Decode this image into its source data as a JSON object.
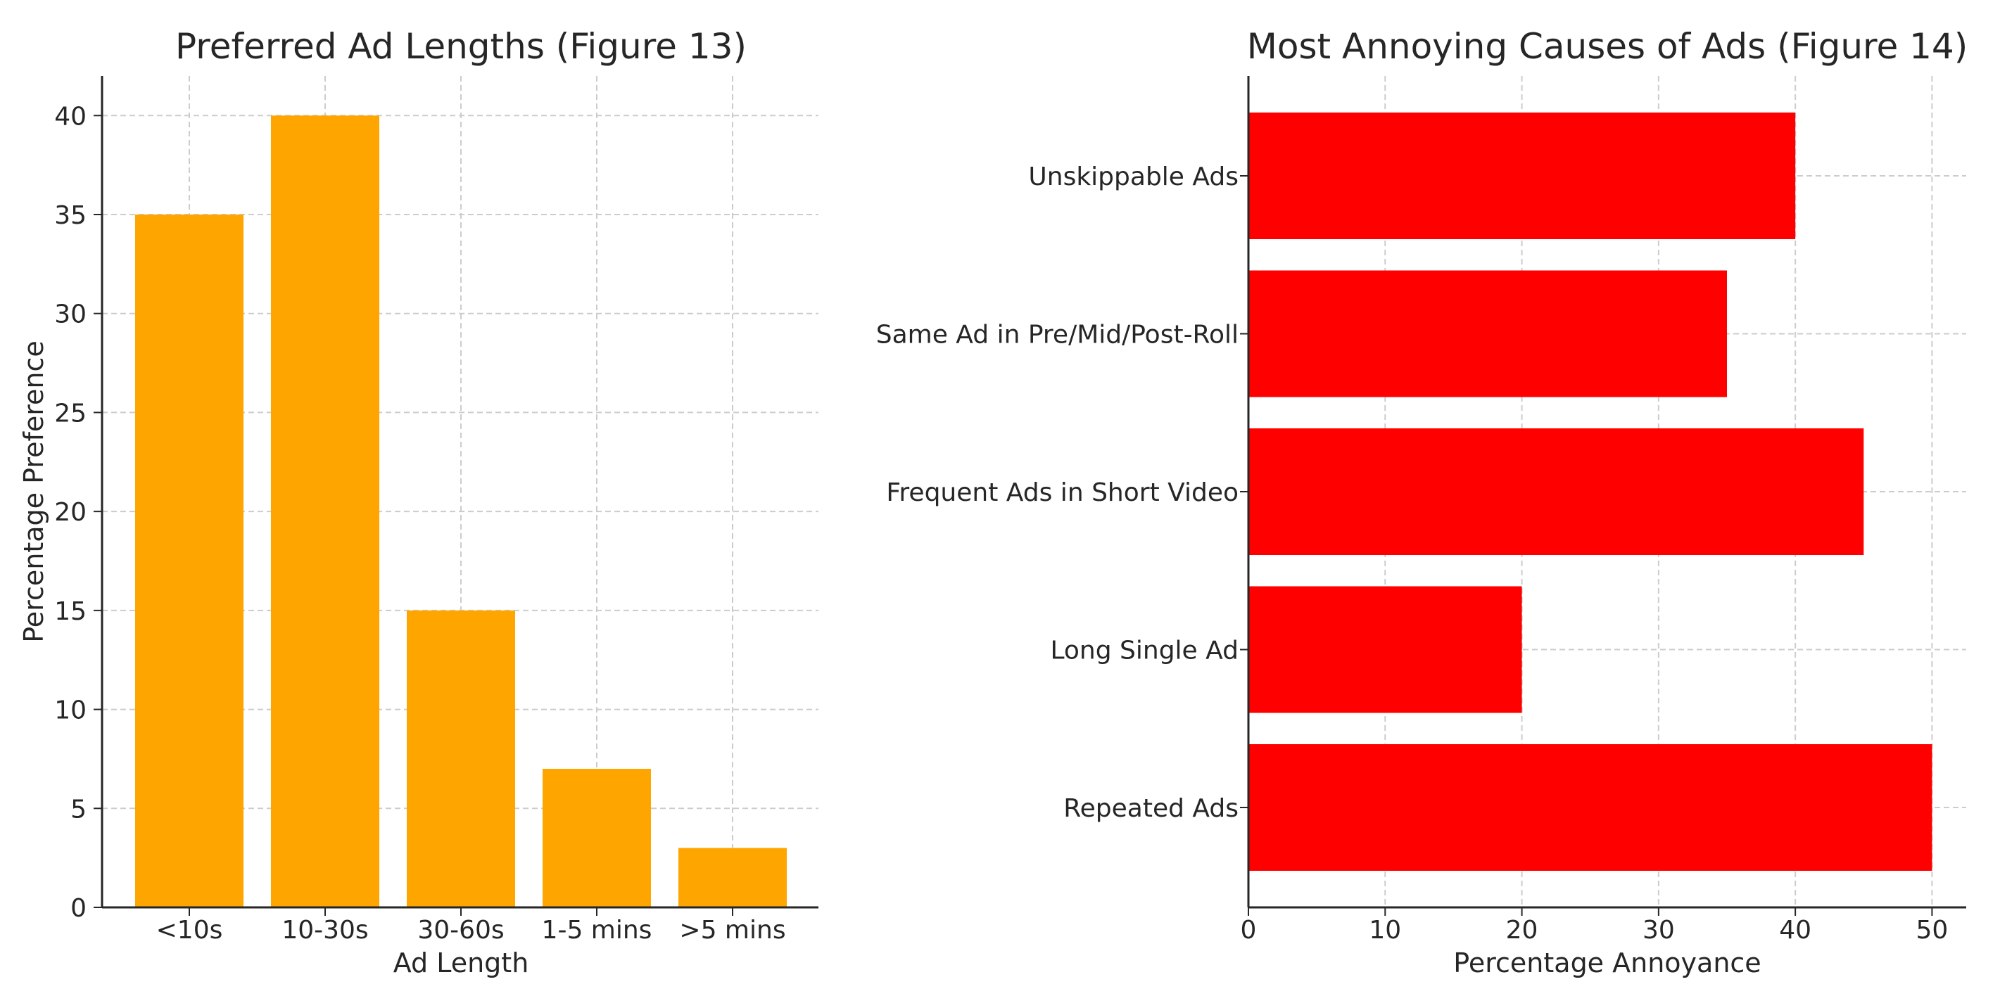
{
  "chart_data": [
    {
      "type": "bar",
      "title": "Preferred Ad Lengths (Figure 13)",
      "xlabel": "Ad Length",
      "ylabel": "Percentage Preference",
      "categories": [
        "<10s",
        "10-30s",
        "30-60s",
        "1-5 mins",
        ">5 mins"
      ],
      "values": [
        35,
        40,
        15,
        7,
        3
      ],
      "ylim": [
        0,
        42
      ],
      "yticks": [
        0,
        5,
        10,
        15,
        20,
        25,
        30,
        35,
        40
      ],
      "grid": true,
      "color": "#FFA500"
    },
    {
      "type": "bar",
      "orientation": "horizontal",
      "title": "Most Annoying Causes of Ads (Figure 14)",
      "xlabel": "Percentage Annoyance",
      "ylabel": "",
      "categories": [
        "Repeated Ads",
        "Long Single Ad",
        "Frequent Ads in Short Video",
        "Same Ad in Pre/Mid/Post-Roll",
        "Unskippable Ads"
      ],
      "values": [
        50,
        20,
        45,
        35,
        40
      ],
      "xlim": [
        0,
        52.5
      ],
      "xticks": [
        0,
        10,
        20,
        30,
        40,
        50
      ],
      "grid": true,
      "color": "#FF0000"
    }
  ]
}
